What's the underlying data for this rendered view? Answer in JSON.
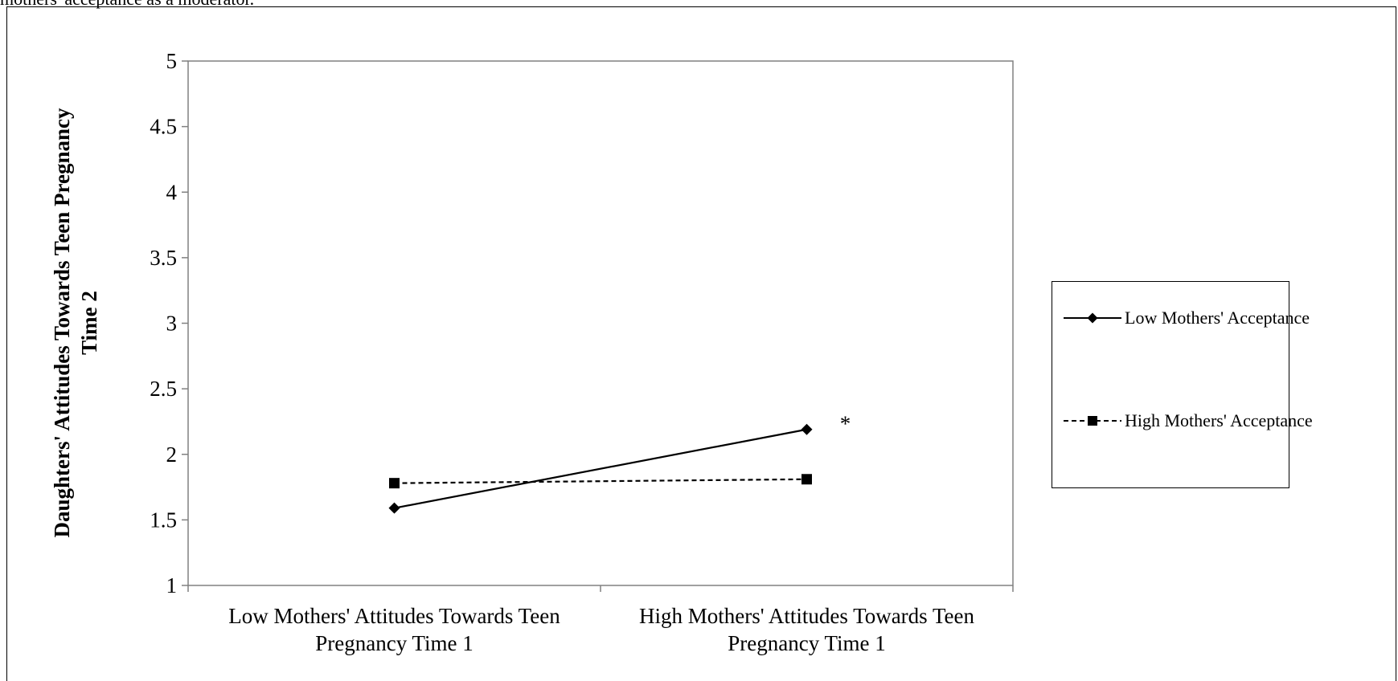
{
  "caption_fragment": "mothers' acceptance as a moderator.",
  "chart_data": {
    "type": "line",
    "title": "",
    "xlabel": "",
    "ylabel": "Daughters' Attitudes Towards Teen Pregnancy Time 2",
    "ylabel_lines": [
      "Daughters' Attitudes Towards Teen Pregnancy",
      "Time 2"
    ],
    "categories": [
      "Low Mothers' Attitudes Towards Teen Pregnancy Time 1",
      "High Mothers' Attitudes Towards Teen Pregnancy Time 1"
    ],
    "category_lines": [
      [
        "Low Mothers' Attitudes Towards Teen",
        "Pregnancy Time 1"
      ],
      [
        "High Mothers' Attitudes Towards Teen",
        "Pregnancy Time 1"
      ]
    ],
    "ylim": [
      1,
      5
    ],
    "yticks": [
      "1",
      "1.5",
      "2",
      "2.5",
      "3",
      "3.5",
      "4",
      "4.5",
      "5"
    ],
    "grid": false,
    "legend_position": "right",
    "series": [
      {
        "name": "Low Mothers' Acceptance",
        "values": [
          1.59,
          2.19
        ],
        "line_style": "solid",
        "marker": "diamond",
        "color": "#000000"
      },
      {
        "name": "High Mothers' Acceptance",
        "values": [
          1.78,
          1.81
        ],
        "line_style": "dashed",
        "marker": "square",
        "color": "#000000"
      }
    ],
    "annotations": [
      {
        "text": "*",
        "series": 0,
        "category": 1
      }
    ]
  }
}
